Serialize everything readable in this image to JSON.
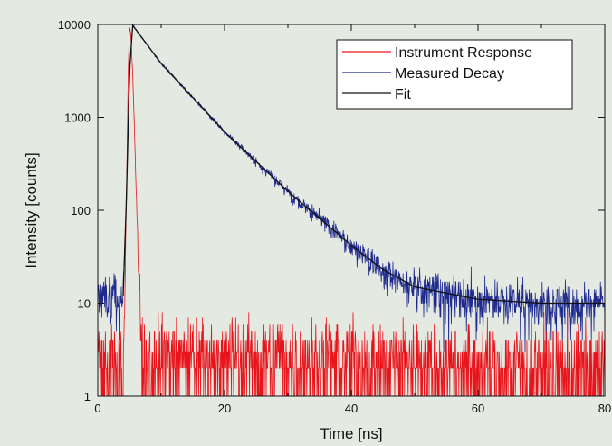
{
  "chart_data": {
    "type": "line",
    "xlabel": "Time [ns]",
    "ylabel": "Intensity [counts]",
    "xlim": [
      0,
      80
    ],
    "ylim": [
      1,
      10000
    ],
    "yscale": "log",
    "x_ticks": [
      0,
      20,
      40,
      60,
      80
    ],
    "y_ticks": [
      1,
      10,
      100,
      1000,
      10000
    ],
    "x_tick_labels": [
      "0",
      "20",
      "40",
      "60",
      "80"
    ],
    "y_tick_labels": [
      "1",
      "10",
      "100",
      "1000",
      "10000"
    ],
    "grid": false,
    "legend_position": "top-right",
    "series": [
      {
        "name": "Instrument Response",
        "color": "#e8141b",
        "x": [
          0,
          4,
          4.3,
          4.6,
          4.8,
          5.0,
          5.2,
          5.5,
          5.8,
          6.1,
          6.5,
          7.0,
          80
        ],
        "y": [
          2,
          2,
          20,
          300,
          3000,
          9500,
          8000,
          3000,
          700,
          120,
          20,
          3,
          2
        ]
      },
      {
        "name": "Measured Decay",
        "color": "#1f2a8f",
        "x": [
          0,
          4.0,
          4.5,
          5.0,
          5.5,
          10,
          20,
          30,
          40,
          45,
          50,
          60,
          70,
          80
        ],
        "y": [
          12,
          12,
          120,
          3000,
          9800,
          3800,
          700,
          160,
          42,
          23,
          15,
          11,
          10,
          10
        ]
      },
      {
        "name": "Fit",
        "color": "#111111",
        "x": [
          4.0,
          4.5,
          5.0,
          5.5,
          10,
          20,
          30,
          40,
          45,
          50,
          60,
          70,
          80
        ],
        "y": [
          12,
          120,
          3000,
          9800,
          3800,
          700,
          160,
          42,
          23,
          15,
          11,
          10,
          10
        ]
      }
    ]
  }
}
